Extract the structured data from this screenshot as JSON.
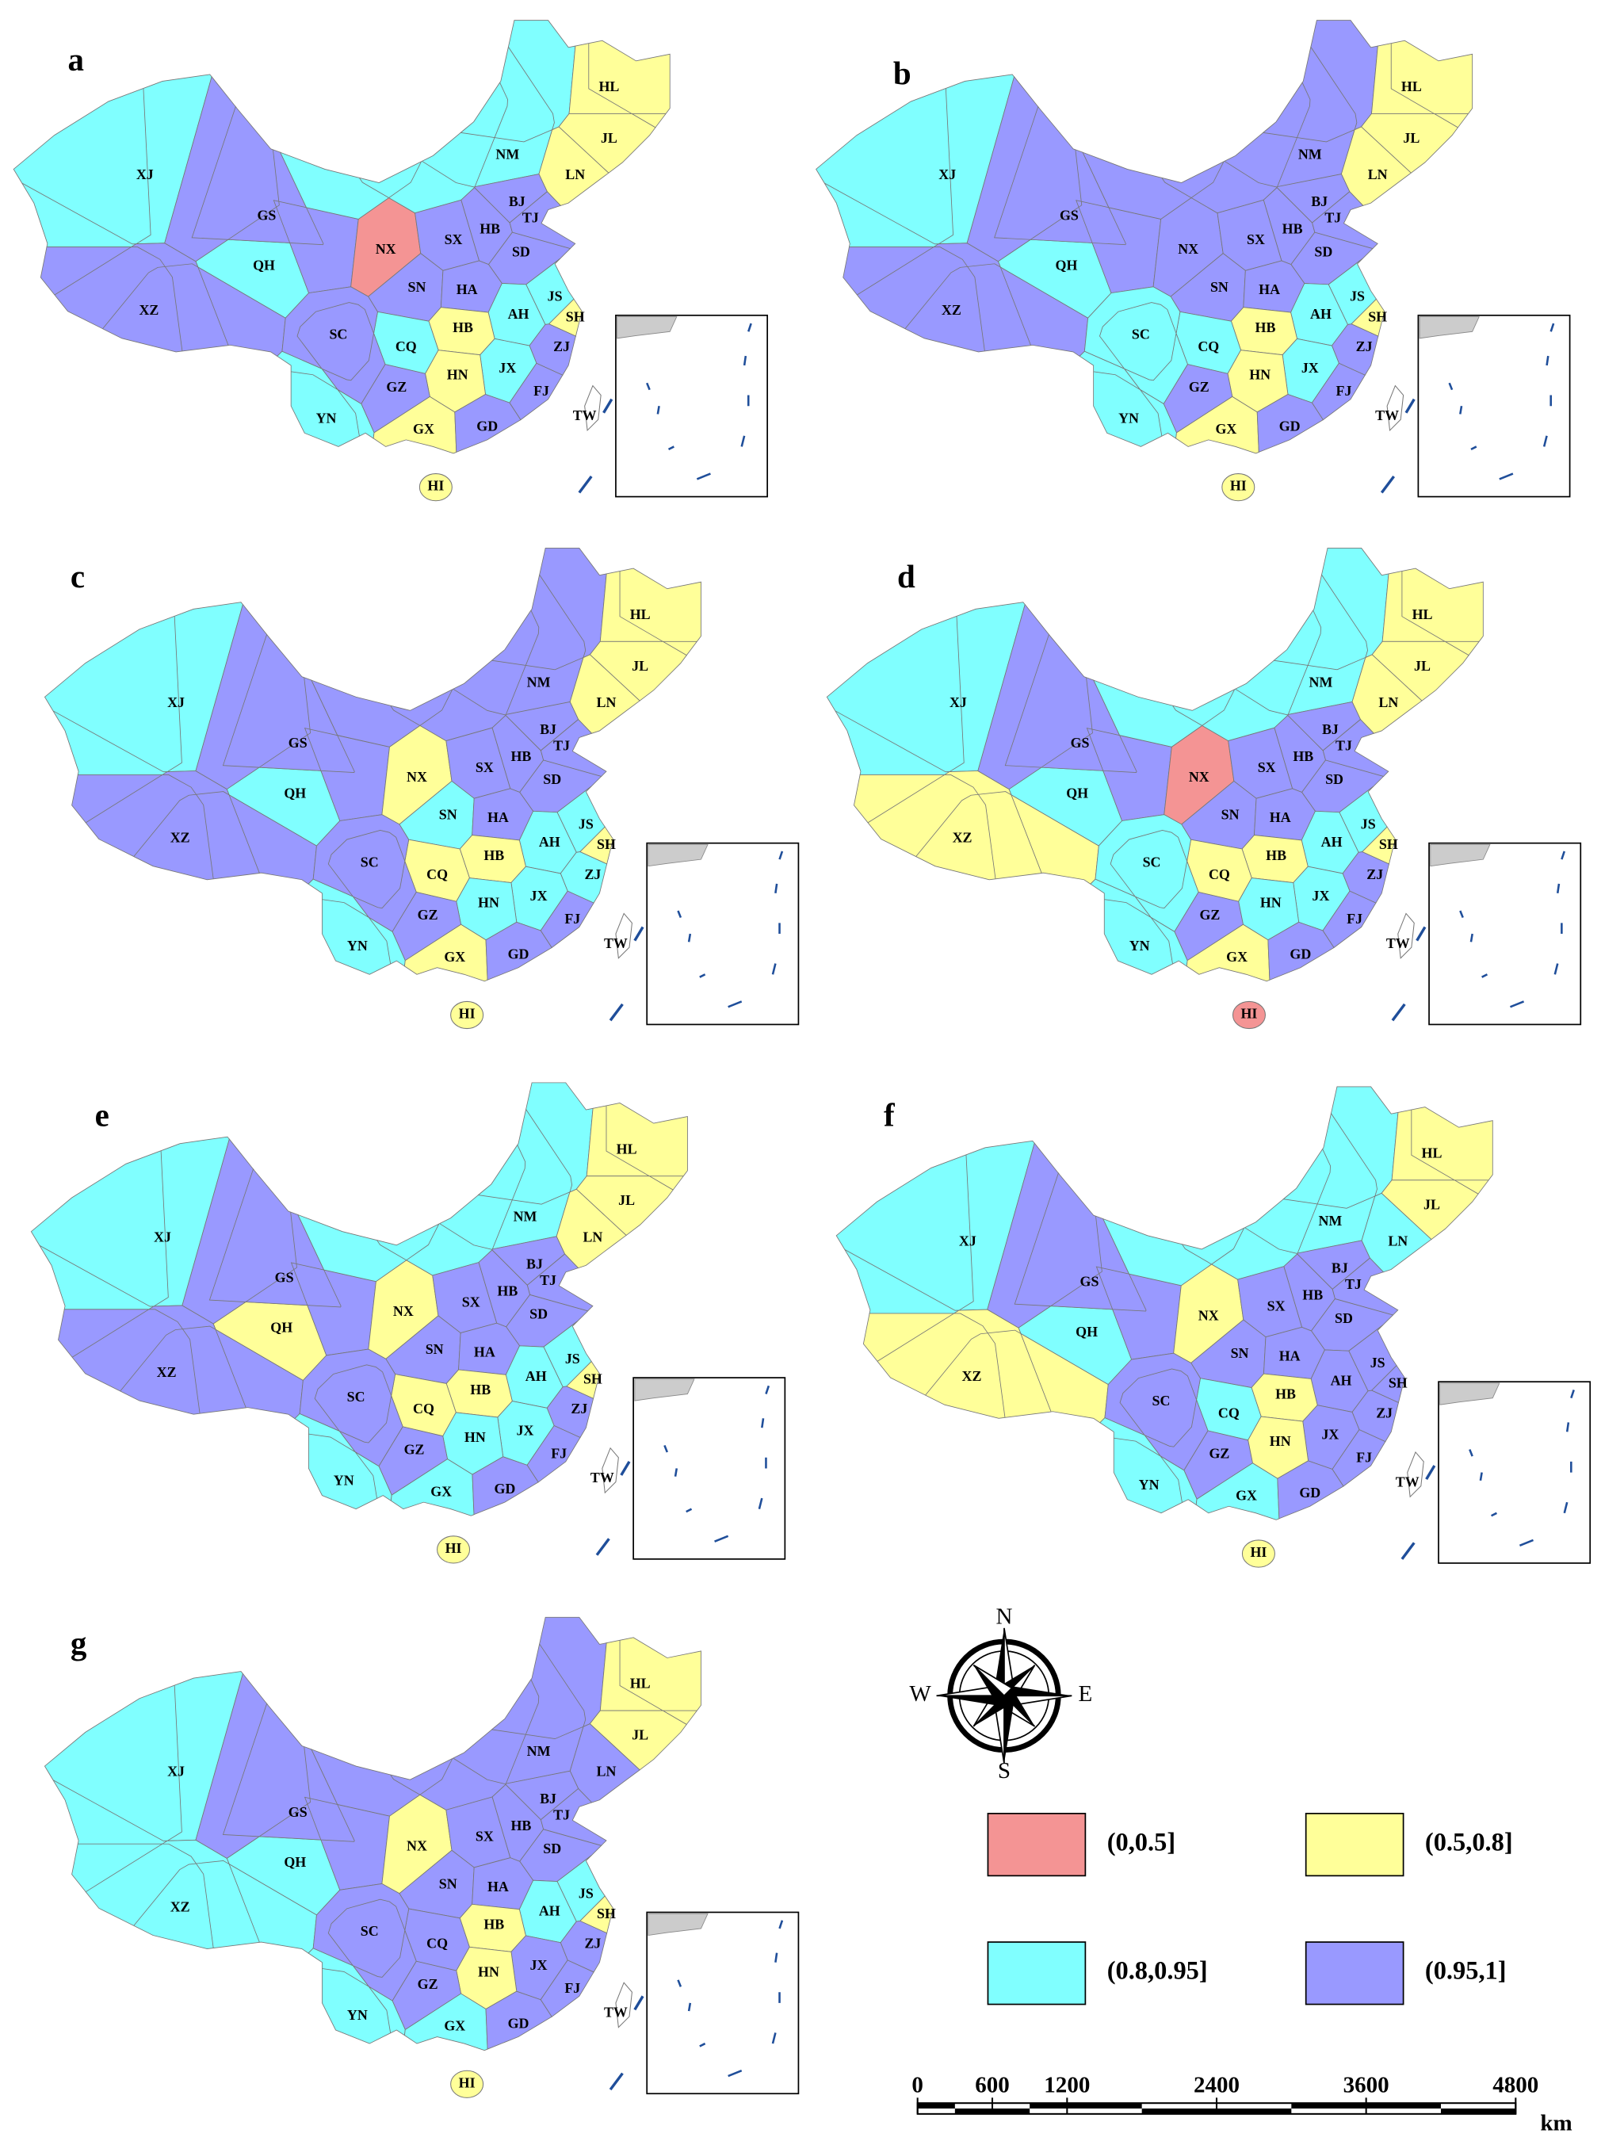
{
  "panels": [
    {
      "letter": "a",
      "regions": [
        {
          "label": "XJ",
          "color": "#80ffff"
        },
        {
          "label": "QH",
          "color": "#80ffff"
        },
        {
          "label": "XZ",
          "color": "#9999ff"
        },
        {
          "label": "GS",
          "color": "#9999ff"
        },
        {
          "label": "NX",
          "color": "#f49494"
        },
        {
          "label": "NM",
          "color": "#80ffff"
        },
        {
          "label": "HL",
          "color": "#ffff99"
        },
        {
          "label": "JL",
          "color": "#ffff99"
        },
        {
          "label": "LN",
          "color": "#ffff99"
        },
        {
          "label": "BJ",
          "color": "#9999ff"
        },
        {
          "label": "TJ",
          "color": "#9999ff"
        },
        {
          "label": "HB",
          "color": "#9999ff"
        },
        {
          "label": "SX",
          "color": "#9999ff"
        },
        {
          "label": "SD",
          "color": "#9999ff"
        },
        {
          "label": "SN",
          "color": "#9999ff"
        },
        {
          "label": "HA",
          "color": "#9999ff"
        },
        {
          "label": "JS",
          "color": "#80ffff"
        },
        {
          "label": "SH",
          "color": "#ffff99"
        },
        {
          "label": "AH",
          "color": "#80ffff"
        },
        {
          "label": "HB",
          "color": "#ffff99"
        },
        {
          "label": "CQ",
          "color": "#80ffff"
        },
        {
          "label": "SC",
          "color": "#9999ff"
        },
        {
          "label": "ZJ",
          "color": "#9999ff"
        },
        {
          "label": "JX",
          "color": "#80ffff"
        },
        {
          "label": "HN",
          "color": "#ffff99"
        },
        {
          "label": "GZ",
          "color": "#9999ff"
        },
        {
          "label": "FJ",
          "color": "#9999ff"
        },
        {
          "label": "YN",
          "color": "#80ffff"
        },
        {
          "label": "GX",
          "color": "#ffff99"
        },
        {
          "label": "GD",
          "color": "#9999ff"
        },
        {
          "label": "HI",
          "color": "#ffff99"
        },
        {
          "label": "TW",
          "color": "#ffffff"
        }
      ]
    },
    {
      "letter": "b",
      "regions": [
        {
          "label": "XJ",
          "color": "#80ffff"
        },
        {
          "label": "QH",
          "color": "#80ffff"
        },
        {
          "label": "XZ",
          "color": "#9999ff"
        },
        {
          "label": "GS",
          "color": "#9999ff"
        },
        {
          "label": "NX",
          "color": "#9999ff"
        },
        {
          "label": "NM",
          "color": "#9999ff"
        },
        {
          "label": "HL",
          "color": "#ffff99"
        },
        {
          "label": "JL",
          "color": "#ffff99"
        },
        {
          "label": "LN",
          "color": "#ffff99"
        },
        {
          "label": "BJ",
          "color": "#9999ff"
        },
        {
          "label": "TJ",
          "color": "#9999ff"
        },
        {
          "label": "HB",
          "color": "#9999ff"
        },
        {
          "label": "SX",
          "color": "#9999ff"
        },
        {
          "label": "SD",
          "color": "#9999ff"
        },
        {
          "label": "SN",
          "color": "#9999ff"
        },
        {
          "label": "HA",
          "color": "#9999ff"
        },
        {
          "label": "JS",
          "color": "#80ffff"
        },
        {
          "label": "SH",
          "color": "#ffff99"
        },
        {
          "label": "AH",
          "color": "#80ffff"
        },
        {
          "label": "HB",
          "color": "#ffff99"
        },
        {
          "label": "CQ",
          "color": "#80ffff"
        },
        {
          "label": "SC",
          "color": "#80ffff"
        },
        {
          "label": "ZJ",
          "color": "#9999ff"
        },
        {
          "label": "JX",
          "color": "#80ffff"
        },
        {
          "label": "HN",
          "color": "#ffff99"
        },
        {
          "label": "GZ",
          "color": "#9999ff"
        },
        {
          "label": "FJ",
          "color": "#9999ff"
        },
        {
          "label": "YN",
          "color": "#80ffff"
        },
        {
          "label": "GX",
          "color": "#ffff99"
        },
        {
          "label": "GD",
          "color": "#9999ff"
        },
        {
          "label": "HI",
          "color": "#ffff99"
        },
        {
          "label": "TW",
          "color": "#ffffff"
        }
      ]
    },
    {
      "letter": "c",
      "regions": [
        {
          "label": "XJ",
          "color": "#80ffff"
        },
        {
          "label": "QH",
          "color": "#80ffff"
        },
        {
          "label": "XZ",
          "color": "#9999ff"
        },
        {
          "label": "GS",
          "color": "#9999ff"
        },
        {
          "label": "NX",
          "color": "#ffff99"
        },
        {
          "label": "NM",
          "color": "#9999ff"
        },
        {
          "label": "HL",
          "color": "#ffff99"
        },
        {
          "label": "JL",
          "color": "#ffff99"
        },
        {
          "label": "LN",
          "color": "#ffff99"
        },
        {
          "label": "BJ",
          "color": "#9999ff"
        },
        {
          "label": "TJ",
          "color": "#9999ff"
        },
        {
          "label": "HB",
          "color": "#9999ff"
        },
        {
          "label": "SX",
          "color": "#9999ff"
        },
        {
          "label": "SD",
          "color": "#9999ff"
        },
        {
          "label": "SN",
          "color": "#80ffff"
        },
        {
          "label": "HA",
          "color": "#9999ff"
        },
        {
          "label": "JS",
          "color": "#80ffff"
        },
        {
          "label": "SH",
          "color": "#ffff99"
        },
        {
          "label": "AH",
          "color": "#80ffff"
        },
        {
          "label": "HB",
          "color": "#ffff99"
        },
        {
          "label": "CQ",
          "color": "#ffff99"
        },
        {
          "label": "SC",
          "color": "#9999ff"
        },
        {
          "label": "ZJ",
          "color": "#80ffff"
        },
        {
          "label": "JX",
          "color": "#80ffff"
        },
        {
          "label": "HN",
          "color": "#80ffff"
        },
        {
          "label": "GZ",
          "color": "#9999ff"
        },
        {
          "label": "FJ",
          "color": "#9999ff"
        },
        {
          "label": "YN",
          "color": "#80ffff"
        },
        {
          "label": "GX",
          "color": "#ffff99"
        },
        {
          "label": "GD",
          "color": "#9999ff"
        },
        {
          "label": "HI",
          "color": "#ffff99"
        },
        {
          "label": "TW",
          "color": "#ffffff"
        }
      ]
    },
    {
      "letter": "d",
      "regions": [
        {
          "label": "XJ",
          "color": "#80ffff"
        },
        {
          "label": "QH",
          "color": "#80ffff"
        },
        {
          "label": "XZ",
          "color": "#ffff99"
        },
        {
          "label": "GS",
          "color": "#9999ff"
        },
        {
          "label": "NX",
          "color": "#f49494"
        },
        {
          "label": "NM",
          "color": "#80ffff"
        },
        {
          "label": "HL",
          "color": "#ffff99"
        },
        {
          "label": "JL",
          "color": "#ffff99"
        },
        {
          "label": "LN",
          "color": "#ffff99"
        },
        {
          "label": "BJ",
          "color": "#9999ff"
        },
        {
          "label": "TJ",
          "color": "#9999ff"
        },
        {
          "label": "HB",
          "color": "#9999ff"
        },
        {
          "label": "SX",
          "color": "#9999ff"
        },
        {
          "label": "SD",
          "color": "#9999ff"
        },
        {
          "label": "SN",
          "color": "#9999ff"
        },
        {
          "label": "HA",
          "color": "#9999ff"
        },
        {
          "label": "JS",
          "color": "#80ffff"
        },
        {
          "label": "SH",
          "color": "#ffff99"
        },
        {
          "label": "AH",
          "color": "#80ffff"
        },
        {
          "label": "HB",
          "color": "#ffff99"
        },
        {
          "label": "CQ",
          "color": "#ffff99"
        },
        {
          "label": "SC",
          "color": "#80ffff"
        },
        {
          "label": "ZJ",
          "color": "#9999ff"
        },
        {
          "label": "JX",
          "color": "#80ffff"
        },
        {
          "label": "HN",
          "color": "#80ffff"
        },
        {
          "label": "GZ",
          "color": "#9999ff"
        },
        {
          "label": "FJ",
          "color": "#9999ff"
        },
        {
          "label": "YN",
          "color": "#80ffff"
        },
        {
          "label": "GX",
          "color": "#ffff99"
        },
        {
          "label": "GD",
          "color": "#9999ff"
        },
        {
          "label": "HI",
          "color": "#f49494"
        },
        {
          "label": "TW",
          "color": "#ffffff"
        }
      ]
    },
    {
      "letter": "e",
      "regions": [
        {
          "label": "XJ",
          "color": "#80ffff"
        },
        {
          "label": "QH",
          "color": "#ffff99"
        },
        {
          "label": "XZ",
          "color": "#9999ff"
        },
        {
          "label": "GS",
          "color": "#9999ff"
        },
        {
          "label": "NX",
          "color": "#ffff99"
        },
        {
          "label": "NM",
          "color": "#80ffff"
        },
        {
          "label": "HL",
          "color": "#ffff99"
        },
        {
          "label": "JL",
          "color": "#ffff99"
        },
        {
          "label": "LN",
          "color": "#ffff99"
        },
        {
          "label": "BJ",
          "color": "#9999ff"
        },
        {
          "label": "TJ",
          "color": "#9999ff"
        },
        {
          "label": "HB",
          "color": "#9999ff"
        },
        {
          "label": "SX",
          "color": "#9999ff"
        },
        {
          "label": "SD",
          "color": "#9999ff"
        },
        {
          "label": "SN",
          "color": "#9999ff"
        },
        {
          "label": "HA",
          "color": "#9999ff"
        },
        {
          "label": "JS",
          "color": "#80ffff"
        },
        {
          "label": "SH",
          "color": "#ffff99"
        },
        {
          "label": "AH",
          "color": "#80ffff"
        },
        {
          "label": "HB",
          "color": "#ffff99"
        },
        {
          "label": "CQ",
          "color": "#ffff99"
        },
        {
          "label": "SC",
          "color": "#9999ff"
        },
        {
          "label": "ZJ",
          "color": "#9999ff"
        },
        {
          "label": "JX",
          "color": "#80ffff"
        },
        {
          "label": "HN",
          "color": "#80ffff"
        },
        {
          "label": "GZ",
          "color": "#9999ff"
        },
        {
          "label": "FJ",
          "color": "#9999ff"
        },
        {
          "label": "YN",
          "color": "#80ffff"
        },
        {
          "label": "GX",
          "color": "#80ffff"
        },
        {
          "label": "GD",
          "color": "#9999ff"
        },
        {
          "label": "HI",
          "color": "#ffff99"
        },
        {
          "label": "TW",
          "color": "#ffffff"
        }
      ]
    },
    {
      "letter": "f",
      "regions": [
        {
          "label": "XJ",
          "color": "#80ffff"
        },
        {
          "label": "QH",
          "color": "#80ffff"
        },
        {
          "label": "XZ",
          "color": "#ffff99"
        },
        {
          "label": "GS",
          "color": "#9999ff"
        },
        {
          "label": "NX",
          "color": "#ffff99"
        },
        {
          "label": "NM",
          "color": "#80ffff"
        },
        {
          "label": "HL",
          "color": "#ffff99"
        },
        {
          "label": "JL",
          "color": "#ffff99"
        },
        {
          "label": "LN",
          "color": "#80ffff"
        },
        {
          "label": "BJ",
          "color": "#9999ff"
        },
        {
          "label": "TJ",
          "color": "#9999ff"
        },
        {
          "label": "HB",
          "color": "#9999ff"
        },
        {
          "label": "SX",
          "color": "#9999ff"
        },
        {
          "label": "SD",
          "color": "#9999ff"
        },
        {
          "label": "SN",
          "color": "#9999ff"
        },
        {
          "label": "HA",
          "color": "#9999ff"
        },
        {
          "label": "JS",
          "color": "#9999ff"
        },
        {
          "label": "SH",
          "color": "#9999ff"
        },
        {
          "label": "AH",
          "color": "#9999ff"
        },
        {
          "label": "HB",
          "color": "#ffff99"
        },
        {
          "label": "CQ",
          "color": "#80ffff"
        },
        {
          "label": "SC",
          "color": "#9999ff"
        },
        {
          "label": "ZJ",
          "color": "#9999ff"
        },
        {
          "label": "JX",
          "color": "#9999ff"
        },
        {
          "label": "HN",
          "color": "#ffff99"
        },
        {
          "label": "GZ",
          "color": "#9999ff"
        },
        {
          "label": "FJ",
          "color": "#9999ff"
        },
        {
          "label": "YN",
          "color": "#80ffff"
        },
        {
          "label": "GX",
          "color": "#80ffff"
        },
        {
          "label": "GD",
          "color": "#9999ff"
        },
        {
          "label": "HI",
          "color": "#ffff99"
        },
        {
          "label": "TW",
          "color": "#ffffff"
        }
      ]
    },
    {
      "letter": "g",
      "regions": [
        {
          "label": "XJ",
          "color": "#80ffff"
        },
        {
          "label": "QH",
          "color": "#80ffff"
        },
        {
          "label": "XZ",
          "color": "#80ffff"
        },
        {
          "label": "GS",
          "color": "#9999ff"
        },
        {
          "label": "NX",
          "color": "#ffff99"
        },
        {
          "label": "NM",
          "color": "#9999ff"
        },
        {
          "label": "HL",
          "color": "#ffff99"
        },
        {
          "label": "JL",
          "color": "#ffff99"
        },
        {
          "label": "LN",
          "color": "#9999ff"
        },
        {
          "label": "BJ",
          "color": "#9999ff"
        },
        {
          "label": "TJ",
          "color": "#9999ff"
        },
        {
          "label": "HB",
          "color": "#9999ff"
        },
        {
          "label": "SX",
          "color": "#9999ff"
        },
        {
          "label": "SD",
          "color": "#9999ff"
        },
        {
          "label": "SN",
          "color": "#9999ff"
        },
        {
          "label": "HA",
          "color": "#9999ff"
        },
        {
          "label": "JS",
          "color": "#80ffff"
        },
        {
          "label": "SH",
          "color": "#ffff99"
        },
        {
          "label": "AH",
          "color": "#80ffff"
        },
        {
          "label": "HB",
          "color": "#ffff99"
        },
        {
          "label": "CQ",
          "color": "#9999ff"
        },
        {
          "label": "SC",
          "color": "#9999ff"
        },
        {
          "label": "ZJ",
          "color": "#9999ff"
        },
        {
          "label": "JX",
          "color": "#9999ff"
        },
        {
          "label": "HN",
          "color": "#ffff99"
        },
        {
          "label": "GZ",
          "color": "#9999ff"
        },
        {
          "label": "FJ",
          "color": "#9999ff"
        },
        {
          "label": "YN",
          "color": "#80ffff"
        },
        {
          "label": "GX",
          "color": "#80ffff"
        },
        {
          "label": "GD",
          "color": "#9999ff"
        },
        {
          "label": "HI",
          "color": "#ffff99"
        },
        {
          "label": "TW",
          "color": "#ffffff"
        }
      ]
    }
  ],
  "compass": {
    "north": "N",
    "south": "S",
    "east": "E",
    "west": "W"
  },
  "legend": [
    {
      "label": "(0,0.5]",
      "color": "#f49494"
    },
    {
      "label": "(0.5,0.8]",
      "color": "#ffff99"
    },
    {
      "label": "(0.8,0.95]",
      "color": "#80ffff"
    },
    {
      "label": "(0.95,1]",
      "color": "#9999ff"
    }
  ],
  "scale_bar": {
    "ticks": [
      0,
      600,
      1200,
      2400,
      3600,
      4800
    ],
    "unit": "km"
  }
}
